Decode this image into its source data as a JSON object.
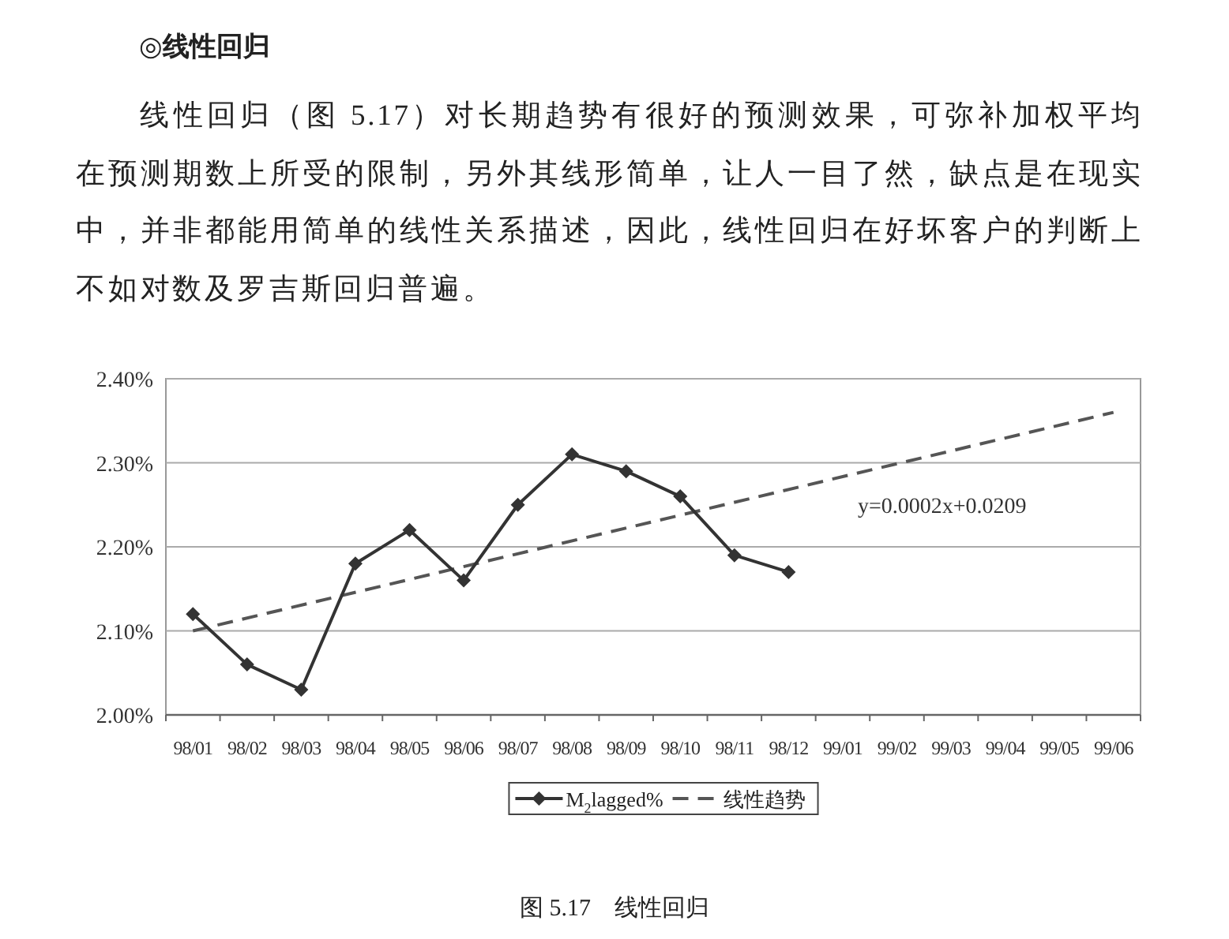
{
  "chart_data": {
    "type": "line",
    "title": "◎线性回归",
    "subtitle": "线性回归（图 5.17）对长期趋势有很好的预测效果，可弥补加权平均在预测期数上所受的限制，另外其线形简单，让人一目了然，缺点是在现实中，并非都能用简单的线性关系描述，因此，线性回归在好坏客户的判断上不如对数及罗吉斯回归普遍。",
    "categories": [
      "98/01",
      "98/02",
      "98/03",
      "98/04",
      "98/05",
      "98/06",
      "98/07",
      "98/08",
      "98/09",
      "98/10",
      "98/11",
      "98/12",
      "99/01",
      "99/02",
      "99/03",
      "99/04",
      "99/05",
      "99/06"
    ],
    "series": [
      {
        "name": "M$_{2}$lagged%",
        "color": "#333333",
        "marker": "diamond",
        "line_style": "solid",
        "values": [
          2.12,
          2.06,
          2.03,
          2.18,
          2.22,
          2.16,
          2.25,
          2.31,
          2.29,
          2.26,
          2.19,
          2.17,
          null,
          null,
          null,
          null,
          null,
          null
        ]
      },
      {
        "name": "线性趋势",
        "type": "line",
        "color": "#555555",
        "marker": "none",
        "line_style": "dashed",
        "x": [
          "98/01",
          "99/06"
        ],
        "values": [
          2.1,
          2.36
        ]
      }
    ],
    "ylim": [
      2.0,
      2.4
    ],
    "yticks": [
      {
        "value": 2.0,
        "label": "2.00%"
      },
      {
        "value": 2.1,
        "label": "2.10%"
      },
      {
        "value": 2.2,
        "label": "2.20%"
      },
      {
        "value": 2.3,
        "label": "2.30%"
      },
      {
        "value": 2.4,
        "label": "2.40%"
      }
    ],
    "grid": "y",
    "legend": "bottom",
    "annotations": [
      "y=0.0002x+0.0209",
      "图 5.17　线性回归"
    ]
  }
}
